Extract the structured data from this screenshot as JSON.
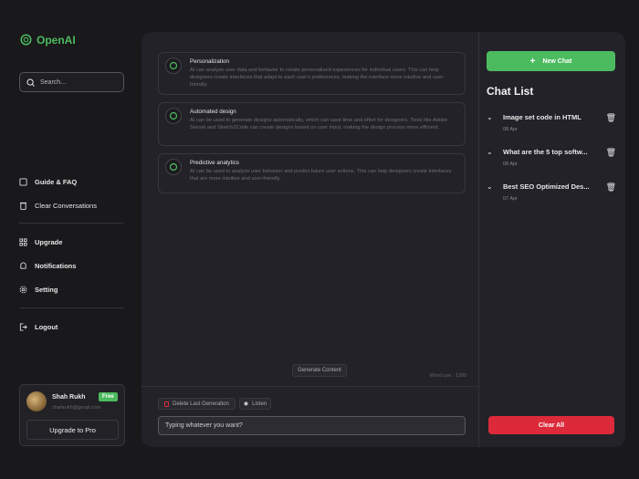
{
  "brand": {
    "name": "OpenAI",
    "color": "#4cbb5f"
  },
  "sidebar": {
    "search_placeholder": "Search...",
    "items": [
      {
        "label": "Guide & FAQ",
        "icon": "book-icon"
      },
      {
        "label": "Clear Conversations",
        "icon": "trash-icon"
      },
      {
        "label": "Upgrade",
        "icon": "grid-icon"
      },
      {
        "label": "Notifications",
        "icon": "bell-icon"
      },
      {
        "label": "Setting",
        "icon": "gear-icon"
      },
      {
        "label": "Logout",
        "icon": "logout-icon"
      }
    ],
    "profile": {
      "name": "Shah Rukh",
      "email": "shahrukh@gmail.com",
      "badge": "Free",
      "upgrade_label": "Upgrade to Pro"
    }
  },
  "main": {
    "cards": [
      {
        "title": "Personalization",
        "text": "AI can analyze user data and behavior to create personalized experiences for individual users. This can help designers create interfaces that adapt to each user's preferences, making the interface  more intuitive and user-friendly."
      },
      {
        "title": "Automated design",
        "text": "AI can be used to generate designs automatically, which can save time and effort for designers. Tools like Adobe Sensei and Sketch2Code can create designs based on user input, making the design process more efficient."
      },
      {
        "title": "Predictive analytics",
        "text": "AI can be used to analyze user behavior and predict future user actions. This can help designers create interfaces that are more intuitive and user-friendly."
      }
    ],
    "generate_label": "Generate Content",
    "word_use": "Word use : 1200",
    "delete_label": "Delete Last Generation",
    "listen_label": "Listen",
    "input_placeholder": "Typing whatever you want?"
  },
  "right": {
    "new_chat_label": "New Chat",
    "heading": "Chat List",
    "chats": [
      {
        "title": "Image set code in HTML",
        "date": "08 Apr"
      },
      {
        "title": "What are the 5 top softw...",
        "date": "08 Apr"
      },
      {
        "title": "Best SEO Optimized Des...",
        "date": "07 Apr"
      }
    ],
    "clear_label": "Clear All",
    "accent": "#4cbb5f",
    "danger": "#dc2a3a"
  }
}
